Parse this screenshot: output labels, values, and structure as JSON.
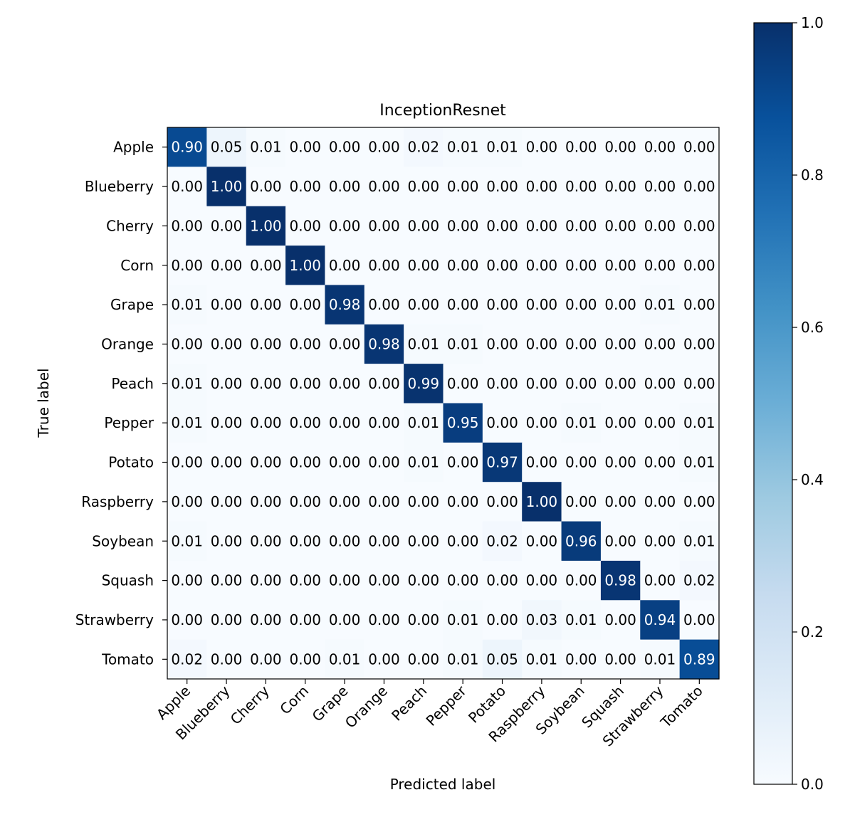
{
  "chart_data": {
    "type": "heatmap",
    "title": "InceptionResnet",
    "xlabel": "Predicted label",
    "ylabel": "True label",
    "labels": [
      "Apple",
      "Blueberry",
      "Cherry",
      "Corn",
      "Grape",
      "Orange",
      "Peach",
      "Pepper",
      "Potato",
      "Raspberry",
      "Soybean",
      "Squash",
      "Strawberry",
      "Tomato"
    ],
    "matrix": [
      [
        0.9,
        0.05,
        0.01,
        0.0,
        0.0,
        0.0,
        0.02,
        0.01,
        0.01,
        0.0,
        0.0,
        0.0,
        0.0,
        0.0
      ],
      [
        0.0,
        1.0,
        0.0,
        0.0,
        0.0,
        0.0,
        0.0,
        0.0,
        0.0,
        0.0,
        0.0,
        0.0,
        0.0,
        0.0
      ],
      [
        0.0,
        0.0,
        1.0,
        0.0,
        0.0,
        0.0,
        0.0,
        0.0,
        0.0,
        0.0,
        0.0,
        0.0,
        0.0,
        0.0
      ],
      [
        0.0,
        0.0,
        0.0,
        1.0,
        0.0,
        0.0,
        0.0,
        0.0,
        0.0,
        0.0,
        0.0,
        0.0,
        0.0,
        0.0
      ],
      [
        0.01,
        0.0,
        0.0,
        0.0,
        0.98,
        0.0,
        0.0,
        0.0,
        0.0,
        0.0,
        0.0,
        0.0,
        0.01,
        0.0
      ],
      [
        0.0,
        0.0,
        0.0,
        0.0,
        0.0,
        0.98,
        0.01,
        0.01,
        0.0,
        0.0,
        0.0,
        0.0,
        0.0,
        0.0
      ],
      [
        0.01,
        0.0,
        0.0,
        0.0,
        0.0,
        0.0,
        0.99,
        0.0,
        0.0,
        0.0,
        0.0,
        0.0,
        0.0,
        0.0
      ],
      [
        0.01,
        0.0,
        0.0,
        0.0,
        0.0,
        0.0,
        0.01,
        0.95,
        0.0,
        0.0,
        0.01,
        0.0,
        0.0,
        0.01
      ],
      [
        0.0,
        0.0,
        0.0,
        0.0,
        0.0,
        0.0,
        0.01,
        0.0,
        0.97,
        0.0,
        0.0,
        0.0,
        0.0,
        0.01
      ],
      [
        0.0,
        0.0,
        0.0,
        0.0,
        0.0,
        0.0,
        0.0,
        0.0,
        0.0,
        1.0,
        0.0,
        0.0,
        0.0,
        0.0
      ],
      [
        0.01,
        0.0,
        0.0,
        0.0,
        0.0,
        0.0,
        0.0,
        0.0,
        0.02,
        0.0,
        0.96,
        0.0,
        0.0,
        0.01
      ],
      [
        0.0,
        0.0,
        0.0,
        0.0,
        0.0,
        0.0,
        0.0,
        0.0,
        0.0,
        0.0,
        0.0,
        0.98,
        0.0,
        0.02
      ],
      [
        0.0,
        0.0,
        0.0,
        0.0,
        0.0,
        0.0,
        0.0,
        0.01,
        0.0,
        0.03,
        0.01,
        0.0,
        0.94,
        0.0
      ],
      [
        0.02,
        0.0,
        0.0,
        0.0,
        0.01,
        0.0,
        0.0,
        0.01,
        0.05,
        0.01,
        0.0,
        0.0,
        0.01,
        0.89
      ]
    ],
    "colorbar": {
      "range": [
        0.0,
        1.0
      ],
      "ticks": [
        "0.0",
        "0.2",
        "0.4",
        "0.6",
        "0.8",
        "1.0"
      ],
      "colormap": "Blues",
      "low_color": "#f7fbff",
      "high_color": "#08306b"
    }
  }
}
